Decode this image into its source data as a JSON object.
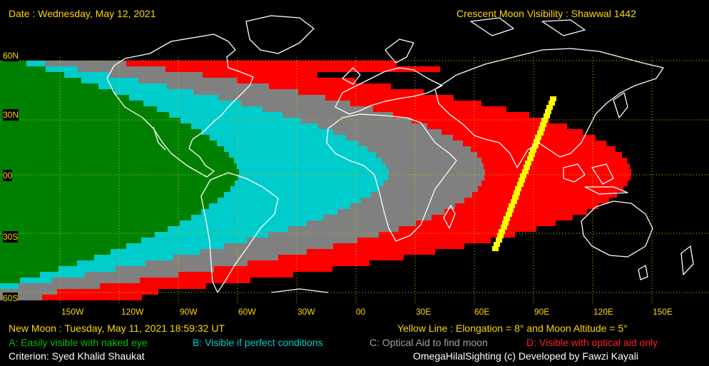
{
  "header": {
    "date": "Date : Wednesday, May 12, 2021",
    "title": "Crescent Moon Visibility : Shawwal  1442"
  },
  "lat_labels": [
    "60N",
    "30N",
    "00",
    "30S",
    "60S"
  ],
  "lon_labels": [
    "150W",
    "120W",
    "90W",
    "60W",
    "30W",
    "00",
    "30E",
    "60E",
    "90E",
    "120E",
    "150E"
  ],
  "footer": {
    "new_moon": "New Moon : Tuesday, May 11, 2021  18:59:32  UT",
    "yellow_line": "Yellow Line : Elongation = 8° and Moon Altitude = 5°",
    "legend_a": "A: Easily visible with naked eye",
    "legend_b": "B: Visible if perfect conditions",
    "legend_c": "C: Optical Aid to find moon",
    "legend_d": "D: Visible with optical aid only",
    "criterion": "Criterion: Syed Khalid Shaukat",
    "credit": "OmegaHilalSighting  (c)  Developed by Fawzi Kayali"
  },
  "colors": {
    "zone_a": "#008000",
    "zone_b": "#00CCCC",
    "zone_c": "#808080",
    "zone_d": "#FF0000",
    "yellow_line": "#FFFF00",
    "text_yellow": "#FFD700",
    "background": "#000000",
    "grid": "#C8C800"
  }
}
